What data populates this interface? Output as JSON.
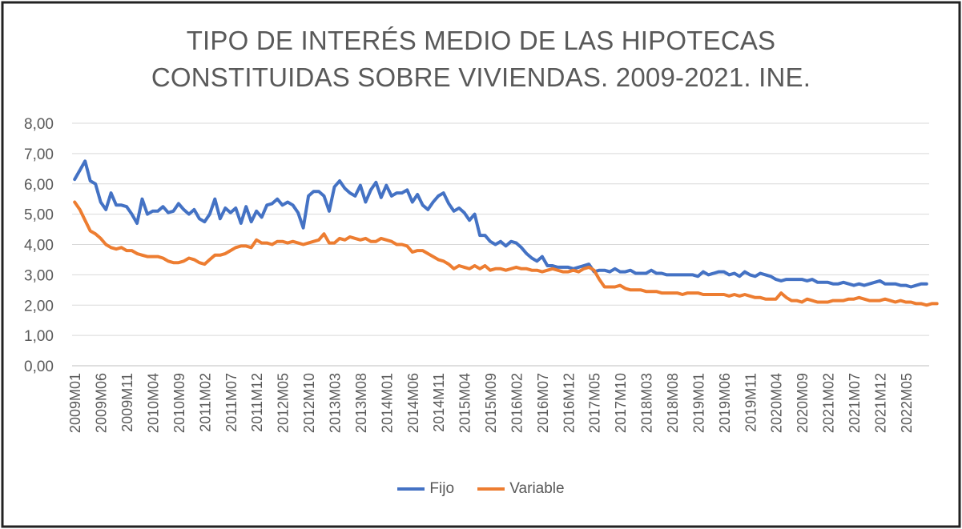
{
  "chart_data": {
    "type": "line",
    "title_lines": [
      "TIPO DE INTERÉS MEDIO DE LAS HIPOTECAS",
      "CONSTITUIDAS SOBRE VIVIENDAS. 2009-2021. INE."
    ],
    "xlabel": "",
    "ylabel": "",
    "ylim": [
      0,
      8
    ],
    "y_ticks": [
      "0,00",
      "1,00",
      "2,00",
      "3,00",
      "4,00",
      "5,00",
      "6,00",
      "7,00",
      "8,00"
    ],
    "x_tick_labels": [
      "2009M01",
      "2009M06",
      "2009M11",
      "2010M04",
      "2010M09",
      "2011M02",
      "2011M07",
      "2011M12",
      "2012M05",
      "2012M10",
      "2013M03",
      "2013M08",
      "2014M01",
      "2014M06",
      "2014M11",
      "2015M04",
      "2015M09",
      "2016M02",
      "2016M07",
      "2016M12",
      "2017M05",
      "2017M10",
      "2018M03",
      "2018M08",
      "2019M01",
      "2019M06",
      "2019M11",
      "2020M04",
      "2020M09",
      "2021M02",
      "2021M07",
      "2021M12",
      "2022M05"
    ],
    "x_first_label": "2009M01",
    "x_label_step_months": 5,
    "n_points": 165,
    "grid": true,
    "legend_position": "bottom",
    "series": [
      {
        "name": "Fijo",
        "color": "#4472C4",
        "values": [
          6.15,
          6.45,
          6.75,
          6.1,
          6.0,
          5.4,
          5.15,
          5.7,
          5.3,
          5.3,
          5.25,
          5.0,
          4.7,
          5.5,
          5.0,
          5.1,
          5.1,
          5.25,
          5.05,
          5.1,
          5.35,
          5.15,
          5.0,
          5.15,
          4.85,
          4.75,
          5.0,
          5.5,
          4.85,
          5.2,
          5.05,
          5.2,
          4.7,
          5.25,
          4.75,
          5.1,
          4.9,
          5.3,
          5.35,
          5.5,
          5.3,
          5.4,
          5.3,
          5.05,
          4.55,
          5.6,
          5.75,
          5.75,
          5.6,
          5.1,
          5.9,
          6.1,
          5.85,
          5.7,
          5.6,
          5.95,
          5.4,
          5.8,
          6.05,
          5.55,
          5.95,
          5.6,
          5.7,
          5.7,
          5.8,
          5.4,
          5.65,
          5.3,
          5.15,
          5.4,
          5.6,
          5.7,
          5.35,
          5.1,
          5.2,
          5.05,
          4.8,
          5.0,
          4.3,
          4.3,
          4.1,
          4.0,
          4.1,
          3.95,
          4.1,
          4.05,
          3.9,
          3.7,
          3.55,
          3.45,
          3.6,
          3.3,
          3.3,
          3.25,
          3.25,
          3.25,
          3.2,
          3.25,
          3.3,
          3.35,
          3.1,
          3.15,
          3.15,
          3.1,
          3.2,
          3.1,
          3.1,
          3.15,
          3.05,
          3.05,
          3.05,
          3.15,
          3.05,
          3.05,
          3.0,
          3.0,
          3.0,
          3.0,
          3.0,
          3.0,
          2.95,
          3.1,
          3.0,
          3.05,
          3.1,
          3.1,
          3.0,
          3.05,
          2.95,
          3.1,
          3.0,
          2.95,
          3.05,
          3.0,
          2.95,
          2.85,
          2.8,
          2.85,
          2.85,
          2.85,
          2.85,
          2.8,
          2.85,
          2.75,
          2.75,
          2.75,
          2.7,
          2.7,
          2.75,
          2.7,
          2.65,
          2.7,
          2.65,
          2.7,
          2.75,
          2.8,
          2.7,
          2.7,
          2.7,
          2.65,
          2.65,
          2.6,
          2.65,
          2.7,
          2.7
        ],
        "markers": false
      },
      {
        "name": "Variable",
        "color": "#ED7D31",
        "values": [
          5.4,
          5.15,
          4.8,
          4.45,
          4.35,
          4.2,
          4.0,
          3.9,
          3.85,
          3.9,
          3.8,
          3.8,
          3.7,
          3.65,
          3.6,
          3.6,
          3.6,
          3.55,
          3.45,
          3.4,
          3.4,
          3.45,
          3.55,
          3.5,
          3.4,
          3.35,
          3.5,
          3.65,
          3.65,
          3.7,
          3.8,
          3.9,
          3.95,
          3.95,
          3.9,
          4.15,
          4.05,
          4.05,
          4.0,
          4.1,
          4.1,
          4.05,
          4.1,
          4.05,
          4.0,
          4.05,
          4.1,
          4.15,
          4.35,
          4.05,
          4.05,
          4.2,
          4.15,
          4.25,
          4.2,
          4.15,
          4.2,
          4.1,
          4.1,
          4.2,
          4.15,
          4.1,
          4.0,
          4.0,
          3.95,
          3.75,
          3.8,
          3.8,
          3.7,
          3.6,
          3.5,
          3.45,
          3.35,
          3.2,
          3.3,
          3.25,
          3.2,
          3.3,
          3.2,
          3.3,
          3.15,
          3.2,
          3.2,
          3.15,
          3.2,
          3.25,
          3.2,
          3.2,
          3.15,
          3.15,
          3.1,
          3.15,
          3.2,
          3.15,
          3.1,
          3.1,
          3.15,
          3.1,
          3.2,
          3.25,
          3.15,
          2.85,
          2.6,
          2.6,
          2.6,
          2.65,
          2.55,
          2.5,
          2.5,
          2.5,
          2.45,
          2.45,
          2.45,
          2.4,
          2.4,
          2.4,
          2.4,
          2.35,
          2.4,
          2.4,
          2.4,
          2.35,
          2.35,
          2.35,
          2.35,
          2.35,
          2.3,
          2.35,
          2.3,
          2.35,
          2.3,
          2.25,
          2.25,
          2.2,
          2.2,
          2.2,
          2.4,
          2.25,
          2.15,
          2.15,
          2.1,
          2.2,
          2.15,
          2.1,
          2.1,
          2.1,
          2.15,
          2.15,
          2.15,
          2.2,
          2.2,
          2.25,
          2.2,
          2.15,
          2.15,
          2.15,
          2.2,
          2.15,
          2.1,
          2.15,
          2.1,
          2.1,
          2.05,
          2.05,
          2.0,
          2.05,
          2.05
        ],
        "markers": false
      }
    ]
  }
}
